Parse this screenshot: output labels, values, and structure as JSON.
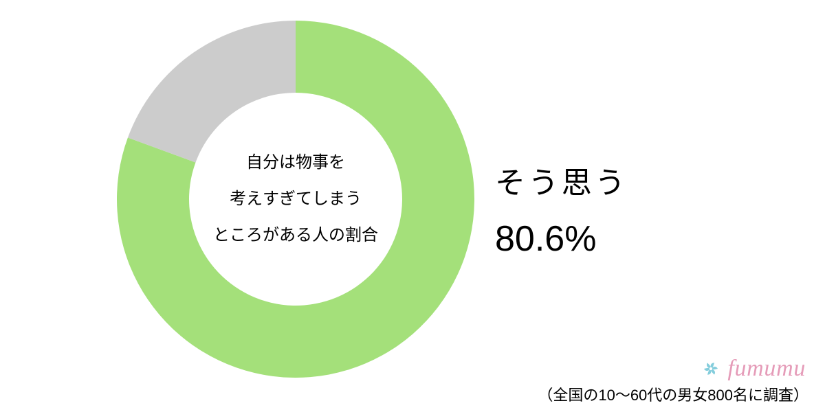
{
  "chart": {
    "type": "donut",
    "primary_value": 80.6,
    "secondary_value": 19.4,
    "primary_color": "#a4e07a",
    "secondary_color": "#cccccc",
    "background_color": "#ffffff",
    "outer_radius": 260,
    "inner_radius": 155,
    "start_angle_deg": 0,
    "center_label_line1": "自分は物事を",
    "center_label_line2": "考えすぎてしまう",
    "center_label_line3": "ところがある人の割合",
    "center_label_fontsize": 24,
    "center_label_color": "#000000"
  },
  "callout": {
    "line1": "そう思う",
    "line2": "80.6%",
    "line1_fontsize": 44,
    "line2_fontsize": 52,
    "color": "#000000"
  },
  "logo": {
    "text": "fumumu",
    "text_color": "#e59bb8",
    "icon_color": "#77c8d8"
  },
  "footnote": {
    "text": "（全国の10〜60代の男女800名に調査）",
    "fontsize": 22,
    "color": "#000000"
  }
}
